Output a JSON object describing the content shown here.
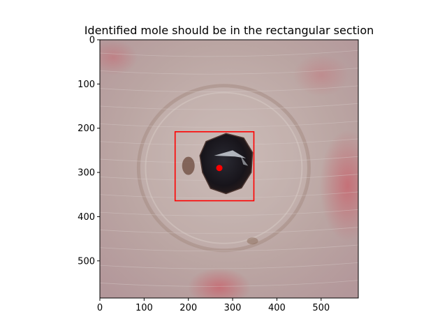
{
  "chart_data": {
    "type": "image",
    "title": "Identified mole should be in the rectangular section",
    "xlabel": "",
    "ylabel": "",
    "xlim": [
      0,
      584
    ],
    "ylim": [
      584,
      0
    ],
    "y_inverted": true,
    "xticks": [
      0,
      100,
      200,
      300,
      400,
      500
    ],
    "yticks": [
      0,
      100,
      200,
      300,
      400,
      500
    ],
    "grid": false,
    "legend": "none",
    "image_content": "dermoscopic skin image with dark mole near center",
    "rectangle": {
      "x0": 170,
      "y0": 208,
      "x1": 348,
      "y1": 364,
      "color": "#ff0000"
    },
    "center_point": {
      "x": 270,
      "y": 290,
      "color": "#ff0000"
    },
    "colors": {
      "skin": "#b9a3a0",
      "skin_light": "#c9b8b4",
      "ring": "#a58c84",
      "mole": "#1a1618",
      "mole_edge": "#4a3530",
      "redness": "#c06870"
    }
  }
}
